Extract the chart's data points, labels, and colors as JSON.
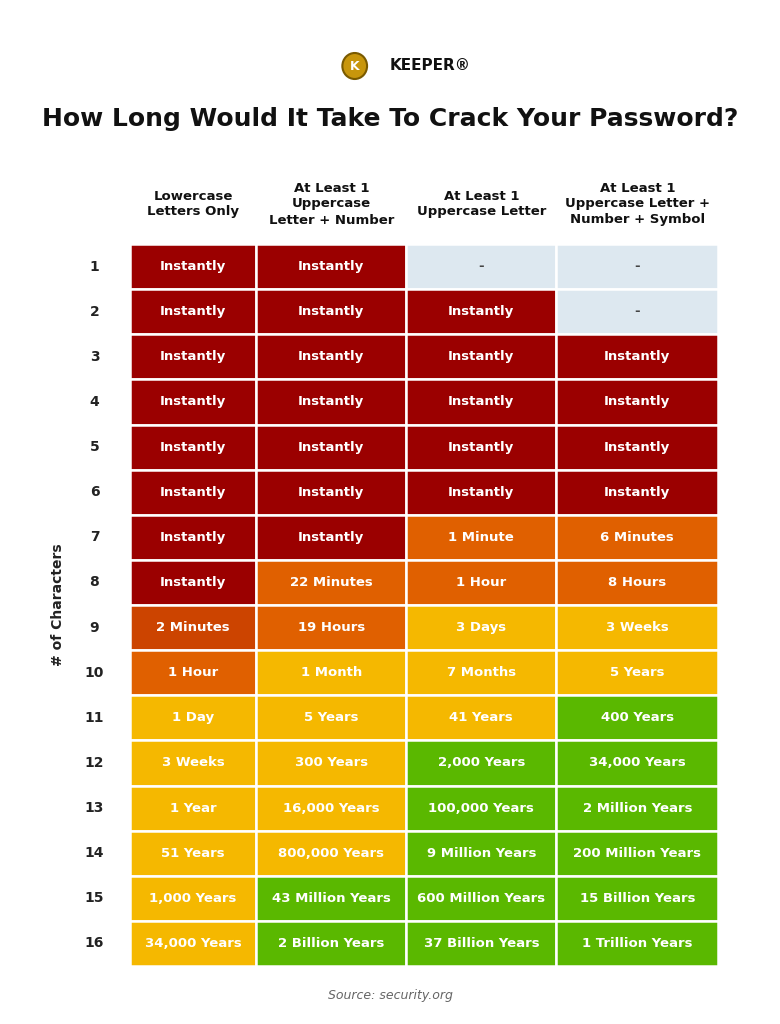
{
  "title": "How Long Would It Take To Crack Your Password?",
  "col_headers": [
    "Lowercase\nLetters Only",
    "At Least 1\nUppercase\nLetter + Number",
    "At Least 1\nUppercase Letter",
    "At Least 1\nUppercase Letter +\nNumber + Symbol"
  ],
  "row_labels": [
    "1",
    "2",
    "3",
    "4",
    "5",
    "6",
    "7",
    "8",
    "9",
    "10",
    "11",
    "12",
    "13",
    "14",
    "15",
    "16"
  ],
  "y_axis_label": "# of Characters",
  "source": "Source: security.org",
  "table_data": [
    [
      "Instantly",
      "Instantly",
      "-",
      "-"
    ],
    [
      "Instantly",
      "Instantly",
      "Instantly",
      "-"
    ],
    [
      "Instantly",
      "Instantly",
      "Instantly",
      "Instantly"
    ],
    [
      "Instantly",
      "Instantly",
      "Instantly",
      "Instantly"
    ],
    [
      "Instantly",
      "Instantly",
      "Instantly",
      "Instantly"
    ],
    [
      "Instantly",
      "Instantly",
      "Instantly",
      "Instantly"
    ],
    [
      "Instantly",
      "Instantly",
      "1 Minute",
      "6 Minutes"
    ],
    [
      "Instantly",
      "22 Minutes",
      "1 Hour",
      "8 Hours"
    ],
    [
      "2 Minutes",
      "19 Hours",
      "3 Days",
      "3 Weeks"
    ],
    [
      "1 Hour",
      "1 Month",
      "7 Months",
      "5 Years"
    ],
    [
      "1 Day",
      "5 Years",
      "41 Years",
      "400 Years"
    ],
    [
      "3 Weeks",
      "300 Years",
      "2,000 Years",
      "34,000 Years"
    ],
    [
      "1 Year",
      "16,000 Years",
      "100,000 Years",
      "2 Million Years"
    ],
    [
      "51 Years",
      "800,000 Years",
      "9 Million Years",
      "200 Million Years"
    ],
    [
      "1,000 Years",
      "43 Million Years",
      "600 Million Years",
      "15 Billion Years"
    ],
    [
      "34,000 Years",
      "2 Billion Years",
      "37 Billion Years",
      "1 Trillion Years"
    ]
  ],
  "cell_colors": [
    [
      "#9b0000",
      "#9b0000",
      "#dde8f0",
      "#dde8f0"
    ],
    [
      "#9b0000",
      "#9b0000",
      "#9b0000",
      "#dde8f0"
    ],
    [
      "#9b0000",
      "#9b0000",
      "#9b0000",
      "#9b0000"
    ],
    [
      "#9b0000",
      "#9b0000",
      "#9b0000",
      "#9b0000"
    ],
    [
      "#9b0000",
      "#9b0000",
      "#9b0000",
      "#9b0000"
    ],
    [
      "#9b0000",
      "#9b0000",
      "#9b0000",
      "#9b0000"
    ],
    [
      "#9b0000",
      "#9b0000",
      "#e06000",
      "#e06000"
    ],
    [
      "#9b0000",
      "#e06000",
      "#e06000",
      "#e06000"
    ],
    [
      "#cc4400",
      "#e06000",
      "#f5b800",
      "#f5b800"
    ],
    [
      "#e06000",
      "#f5b800",
      "#f5b800",
      "#f5b800"
    ],
    [
      "#f5b800",
      "#f5b800",
      "#f5b800",
      "#5ab800"
    ],
    [
      "#f5b800",
      "#f5b800",
      "#5ab800",
      "#5ab800"
    ],
    [
      "#f5b800",
      "#f5b800",
      "#5ab800",
      "#5ab800"
    ],
    [
      "#f5b800",
      "#f5b800",
      "#5ab800",
      "#5ab800"
    ],
    [
      "#f5b800",
      "#5ab800",
      "#5ab800",
      "#5ab800"
    ],
    [
      "#f5b800",
      "#5ab800",
      "#5ab800",
      "#5ab800"
    ]
  ],
  "text_colors": [
    [
      "#ffffff",
      "#ffffff",
      "#444444",
      "#444444"
    ],
    [
      "#ffffff",
      "#ffffff",
      "#ffffff",
      "#444444"
    ],
    [
      "#ffffff",
      "#ffffff",
      "#ffffff",
      "#ffffff"
    ],
    [
      "#ffffff",
      "#ffffff",
      "#ffffff",
      "#ffffff"
    ],
    [
      "#ffffff",
      "#ffffff",
      "#ffffff",
      "#ffffff"
    ],
    [
      "#ffffff",
      "#ffffff",
      "#ffffff",
      "#ffffff"
    ],
    [
      "#ffffff",
      "#ffffff",
      "#ffffff",
      "#ffffff"
    ],
    [
      "#ffffff",
      "#ffffff",
      "#ffffff",
      "#ffffff"
    ],
    [
      "#ffffff",
      "#ffffff",
      "#ffffff",
      "#ffffff"
    ],
    [
      "#ffffff",
      "#ffffff",
      "#ffffff",
      "#ffffff"
    ],
    [
      "#ffffff",
      "#ffffff",
      "#ffffff",
      "#ffffff"
    ],
    [
      "#ffffff",
      "#ffffff",
      "#ffffff",
      "#ffffff"
    ],
    [
      "#ffffff",
      "#ffffff",
      "#ffffff",
      "#ffffff"
    ],
    [
      "#ffffff",
      "#ffffff",
      "#ffffff",
      "#ffffff"
    ],
    [
      "#ffffff",
      "#ffffff",
      "#ffffff",
      "#ffffff"
    ],
    [
      "#ffffff",
      "#ffffff",
      "#ffffff",
      "#ffffff"
    ]
  ],
  "background_color": "#ffffff",
  "title_fontsize": 18,
  "header_fontsize": 9.5,
  "cell_fontsize": 9.5,
  "row_label_fontsize": 10
}
